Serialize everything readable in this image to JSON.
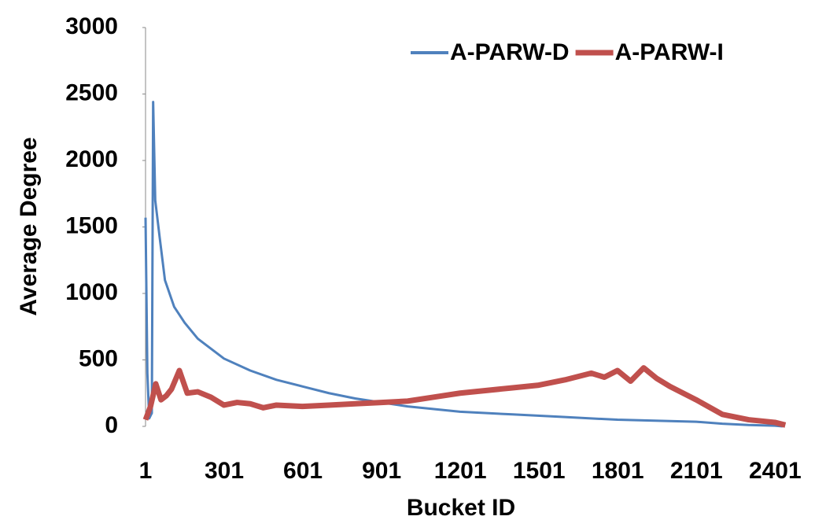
{
  "chart_data": {
    "type": "line",
    "xlabel": "Bucket ID",
    "ylabel": "Average Degree",
    "xlim": [
      1,
      2451
    ],
    "ylim": [
      0,
      3000
    ],
    "xticks": [
      1,
      301,
      601,
      901,
      1201,
      1501,
      1801,
      2101,
      2401
    ],
    "yticks": [
      0,
      500,
      1000,
      1500,
      2000,
      2500,
      3000
    ],
    "legend": "top-right",
    "series": [
      {
        "name": "A-PARW-D",
        "color": "#4f81bd",
        "x": [
          1,
          8,
          15,
          25,
          30,
          38,
          55,
          75,
          110,
          150,
          200,
          300,
          400,
          500,
          600,
          700,
          800,
          900,
          1000,
          1100,
          1200,
          1400,
          1600,
          1800,
          2000,
          2100,
          2200,
          2300,
          2400,
          2430
        ],
        "values": [
          1570,
          400,
          60,
          100,
          2440,
          1700,
          1420,
          1100,
          900,
          780,
          660,
          510,
          420,
          350,
          300,
          250,
          210,
          180,
          150,
          130,
          110,
          90,
          70,
          50,
          40,
          35,
          20,
          10,
          5,
          0
        ]
      },
      {
        "name": "A-PARW-I",
        "color": "#c0504d",
        "x": [
          1,
          20,
          40,
          60,
          80,
          100,
          130,
          160,
          200,
          250,
          300,
          350,
          400,
          450,
          500,
          600,
          700,
          800,
          900,
          1000,
          1100,
          1200,
          1300,
          1400,
          1500,
          1600,
          1700,
          1750,
          1800,
          1850,
          1900,
          1950,
          2000,
          2100,
          2200,
          2300,
          2400,
          2440
        ],
        "values": [
          50,
          150,
          320,
          200,
          230,
          280,
          420,
          250,
          260,
          220,
          160,
          180,
          170,
          140,
          160,
          150,
          160,
          170,
          180,
          190,
          220,
          250,
          270,
          290,
          310,
          350,
          400,
          370,
          420,
          340,
          440,
          360,
          300,
          200,
          90,
          50,
          30,
          10
        ]
      }
    ]
  }
}
